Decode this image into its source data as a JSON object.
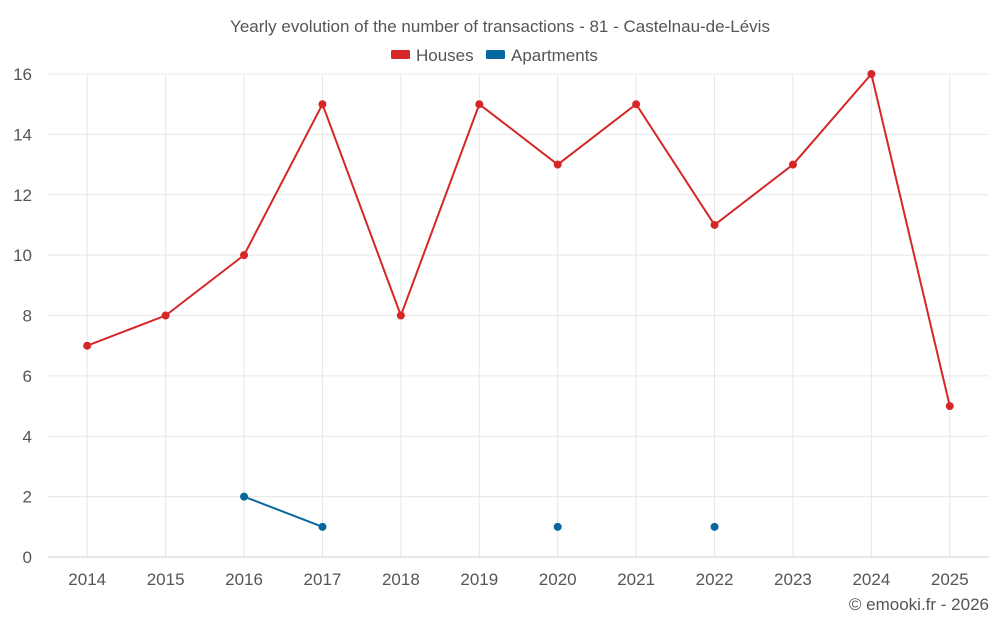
{
  "chart_data": {
    "type": "line",
    "title": "Yearly evolution of the number of transactions - 81 - Castelnau-de-Lévis",
    "categories": [
      "2014",
      "2015",
      "2016",
      "2017",
      "2018",
      "2019",
      "2020",
      "2021",
      "2022",
      "2023",
      "2024",
      "2025"
    ],
    "series": [
      {
        "name": "Houses",
        "color": "#d62728",
        "values": [
          7,
          8,
          10,
          15,
          8,
          15,
          13,
          15,
          11,
          13,
          16,
          5
        ]
      },
      {
        "name": "Apartments",
        "color": "#08679c",
        "values": [
          null,
          null,
          2,
          1,
          null,
          null,
          1,
          null,
          1,
          null,
          null,
          null
        ]
      }
    ],
    "ylim": [
      0,
      16
    ],
    "yticks": [
      "0",
      "2",
      "4",
      "6",
      "8",
      "10",
      "12",
      "14",
      "16"
    ],
    "legend_position": "top-center",
    "grid": true,
    "xlabel": "",
    "ylabel": ""
  },
  "credit": "© emooki.fr - 2026"
}
